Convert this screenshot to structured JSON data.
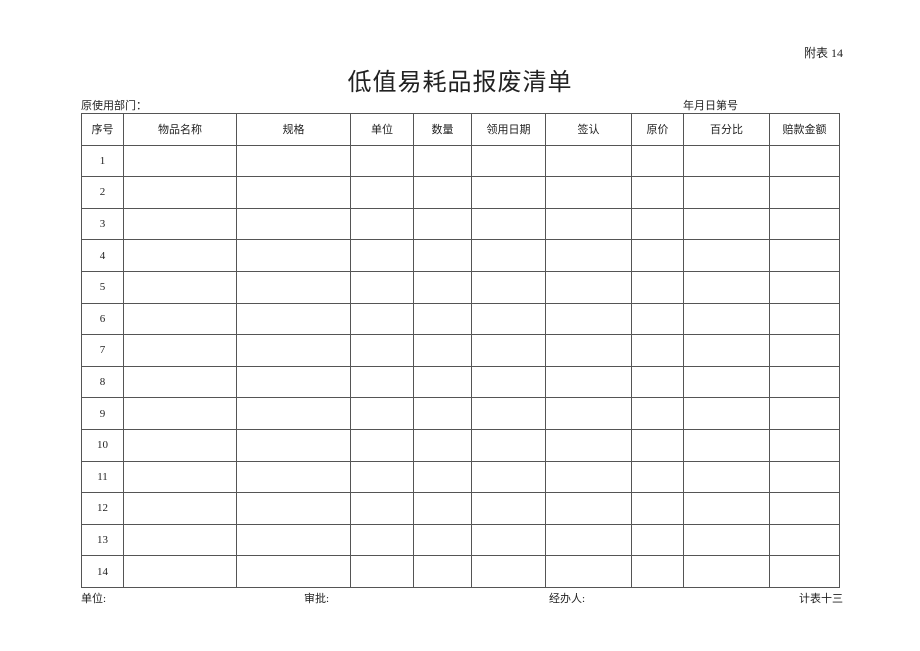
{
  "appendix_label": "附表 14",
  "title": "低值易耗品报废清单",
  "dept_label": "原使用部门：",
  "date_no_label": "年月日第号",
  "table": {
    "headers": [
      "序号",
      "物品名称",
      "规格",
      "单位",
      "数量",
      "领用日期",
      "签认",
      "原价",
      "百分比",
      "赔款金额"
    ],
    "rows": [
      "1",
      "2",
      "3",
      "4",
      "5",
      "6",
      "7",
      "8",
      "9",
      "10",
      "11",
      "12",
      "13",
      "14"
    ]
  },
  "footer": {
    "unit": "单位:",
    "approval": "审批:",
    "handler": "经办人:",
    "form_no": "计表十三"
  }
}
